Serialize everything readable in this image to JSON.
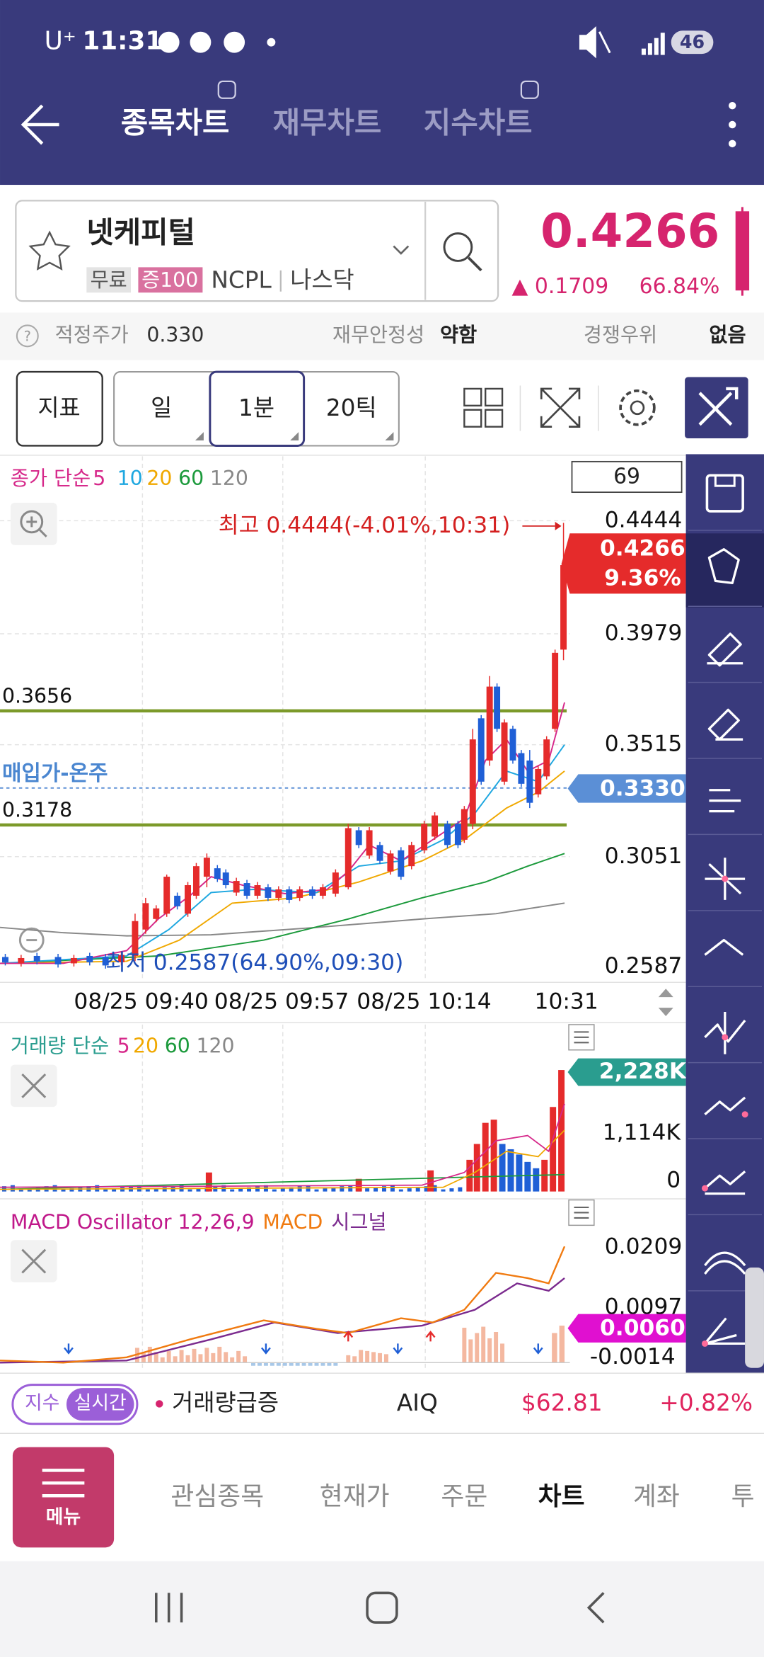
{
  "status_bar": {
    "carrier": "U⁺",
    "time": "11:31",
    "battery": "46"
  },
  "header": {
    "tabs": [
      "종목차트",
      "재무차트",
      "지수차트"
    ]
  },
  "stock": {
    "name": "넷케피털",
    "tags": [
      "무료",
      "증100"
    ],
    "ticker": "NCPL",
    "market": "나스닥",
    "price": "0.4266",
    "change": "▲ 0.1709",
    "change_pct": "66.84%"
  },
  "info": {
    "fair_price_label": "적정주가",
    "fair_price": "0.330",
    "stability_label": "재무안정성",
    "stability": "약함",
    "moat_label": "경쟁우위",
    "moat": "없음"
  },
  "toolbar": {
    "buttons": [
      "지표",
      "일",
      "1분",
      "20틱"
    ]
  },
  "price_chart": {
    "legend_title": "종가 단순",
    "ma": [
      "5",
      "10",
      "20",
      "60",
      "120"
    ],
    "counter": "69",
    "high_note": "최고 0.4444(-4.01%,10:31)",
    "low_note": "최저 0.2587(64.90%,09:30)",
    "price_axis": [
      "0.4444",
      "0.3979",
      "0.3515",
      "0.3051",
      "0.2587"
    ],
    "current_price": "0.4266",
    "current_pct": "9.36%",
    "lines": [
      "0.3656",
      "0.3178"
    ],
    "buy_label": "매입가-온주",
    "buy_price": "0.3330",
    "dates": [
      "08/25 09:40",
      "08/25 09:57",
      "08/25 10:14",
      "10:31"
    ]
  },
  "volume": {
    "legend_title": "거래량 단순",
    "ma": [
      "5",
      "20",
      "60",
      "120"
    ],
    "axis": [
      "2,228K",
      "1,114K",
      "0"
    ]
  },
  "macd": {
    "legend_title": "MACD Oscillator 12,26,9",
    "macd": "MACD",
    "signal": "시그널",
    "axis": [
      "0.0209",
      "0.0097",
      "-0.0014"
    ],
    "current": "0.0060"
  },
  "ticker_bar": {
    "badge": "지수",
    "badge_active": "실시간",
    "news": "거래량급증",
    "symbol": "AIQ",
    "price": "$62.81",
    "change": "+0.82%"
  },
  "bottom_nav": {
    "menu": "메뉴",
    "items": [
      "관심종목",
      "현재가",
      "주문",
      "차트",
      "계좌",
      "투"
    ]
  }
}
